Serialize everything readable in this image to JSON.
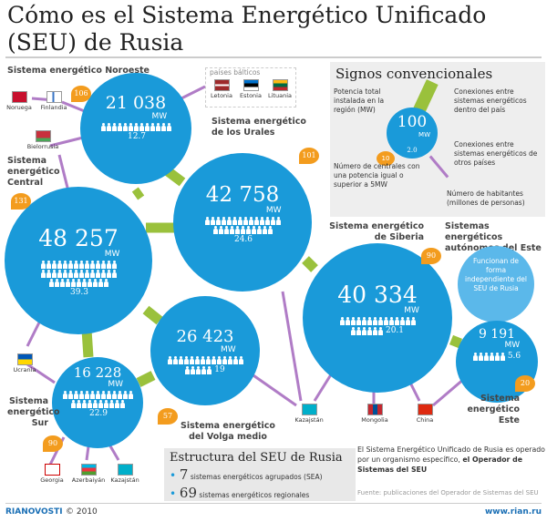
{
  "title": "Cómo es el Sistema Energético Unificado (SEU) de Rusia",
  "colors": {
    "circle": "#1a9ad9",
    "autonomous": "#5bb8ea",
    "plants_badge": "#f39c1e",
    "domestic_link": "#9ac13c",
    "foreign_link": "#b07cc6"
  },
  "systems": {
    "noroeste": {
      "label": "Sistema energético Noroeste",
      "mw": "21 038",
      "unit": "MW",
      "population": "12.7",
      "plants": "106"
    },
    "central": {
      "label": "Sistema energético Central",
      "mw": "48 257",
      "unit": "MW",
      "population": "39.3",
      "plants": "131"
    },
    "urales": {
      "label": "Sistema energético de los Urales",
      "mw": "42 758",
      "unit": "MW",
      "population": "24.6",
      "plants": "101"
    },
    "volga": {
      "label": "Sistema energético del Volga medio",
      "mw": "26 423",
      "unit": "MW",
      "population": "19",
      "plants": "57"
    },
    "sur": {
      "label": "Sistema energético Sur",
      "mw": "16 228",
      "unit": "MW",
      "population": "22.9",
      "plants": "90"
    },
    "siberia": {
      "label": "Sistema energético de Siberia",
      "mw": "40 334",
      "unit": "MW",
      "population": "20.1",
      "plants": "90"
    },
    "este": {
      "label": "Sistema energético Este",
      "mw": "9 191",
      "unit": "MW",
      "population": "5.6",
      "plants": "20"
    }
  },
  "autonomous": {
    "label": "Sistemas energéticos autónomos del Este",
    "text": "Funcionan de forma independiente del SEU de Rusia"
  },
  "baltic": {
    "label": "países bálticos",
    "countries": [
      "Letonia",
      "Estonia",
      "Lituania"
    ]
  },
  "countries": {
    "noruega": "Noruega",
    "finlandia": "Finlandia",
    "bielorrusia": "Bielorrusia",
    "ucrania": "Ucrania",
    "georgia": "Georgia",
    "azerbaiyan": "Azerbaiyán",
    "kazajstan": "Kazajstán",
    "mongolia": "Mongolia",
    "china": "China"
  },
  "legend": {
    "title": "Signos convencionales",
    "power": "Potencia total instalada en la región (MW)",
    "domestic": "Conexiones entre sistemas energéticos dentro del país",
    "foreign": "Conexiones entre sistemas energéticos de otros países",
    "plants": "Número de centrales con una potencia igual o superior a 5MW",
    "population": "Número de habitantes (millones de personas)",
    "sample_mw": "100",
    "sample_unit": "MW",
    "sample_pop": "2.0",
    "sample_plants": "10"
  },
  "structure": {
    "title": "Estructura del SEU de Rusia",
    "items": [
      {
        "num": "7",
        "text": "sistemas energéticos agrupados (SEA)"
      },
      {
        "num": "69",
        "text": "sistemas energéticos regionales"
      }
    ]
  },
  "note": {
    "text": "El Sistema Energético Unificado de Rusia es operado por un organismo específico,",
    "bold": "el Operador de Sistemas del SEU"
  },
  "source": "Fuente: publicaciones del Operador de Sistemas del SEU",
  "footer": {
    "brand": "RIANOVOSTI",
    "copyright": "© 2010",
    "url": "www.rian.ru"
  }
}
